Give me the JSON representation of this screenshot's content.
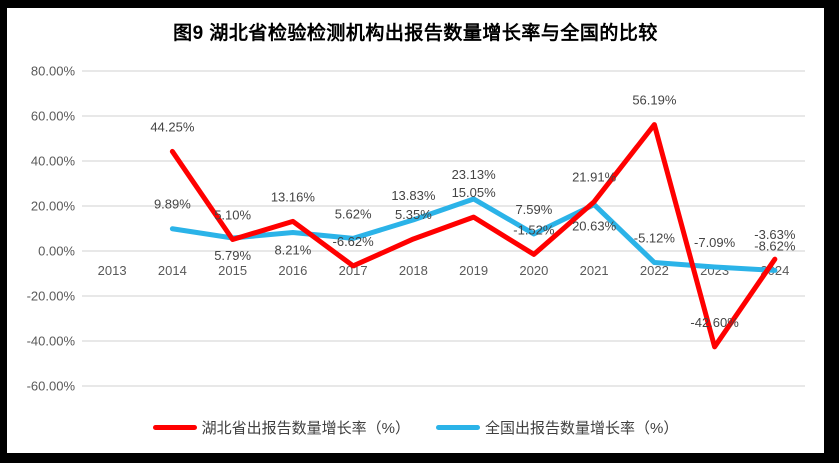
{
  "chart_data": {
    "type": "line",
    "title": "图9 湖北省检验检测机构出报告数量增长率与全国的比较",
    "categories": [
      "2013",
      "2014",
      "2015",
      "2016",
      "2017",
      "2018",
      "2019",
      "2020",
      "2021",
      "2022",
      "2023",
      "2024"
    ],
    "series": [
      {
        "name": "湖北省出报告数量增长率（%）",
        "color": "#FF0000",
        "values": [
          null,
          44.25,
          5.1,
          13.16,
          -6.62,
          5.35,
          15.05,
          -1.52,
          21.91,
          56.19,
          -42.6,
          -3.63
        ]
      },
      {
        "name": "全国出报告数量增长率（%）",
        "color": "#2BB3E8",
        "values": [
          null,
          9.89,
          5.79,
          8.21,
          5.62,
          13.83,
          23.13,
          7.59,
          20.63,
          -5.12,
          -7.09,
          -8.62
        ]
      }
    ],
    "ylim": [
      -60,
      80
    ],
    "yticks": [
      80,
      60,
      40,
      20,
      0,
      -20,
      -40,
      -60
    ],
    "ytick_labels": [
      "80.00%",
      "60.00%",
      "40.00%",
      "20.00%",
      "0.00%",
      "-20.00%",
      "-40.00%",
      "-60.00%"
    ],
    "grid": true,
    "data_labels": true,
    "legend_position": "bottom",
    "colors": {
      "grid": "#D9D9D9",
      "axis_text": "#595959",
      "data_label_text": "#444444",
      "title_text": "#000000",
      "frame": "#000000"
    }
  }
}
